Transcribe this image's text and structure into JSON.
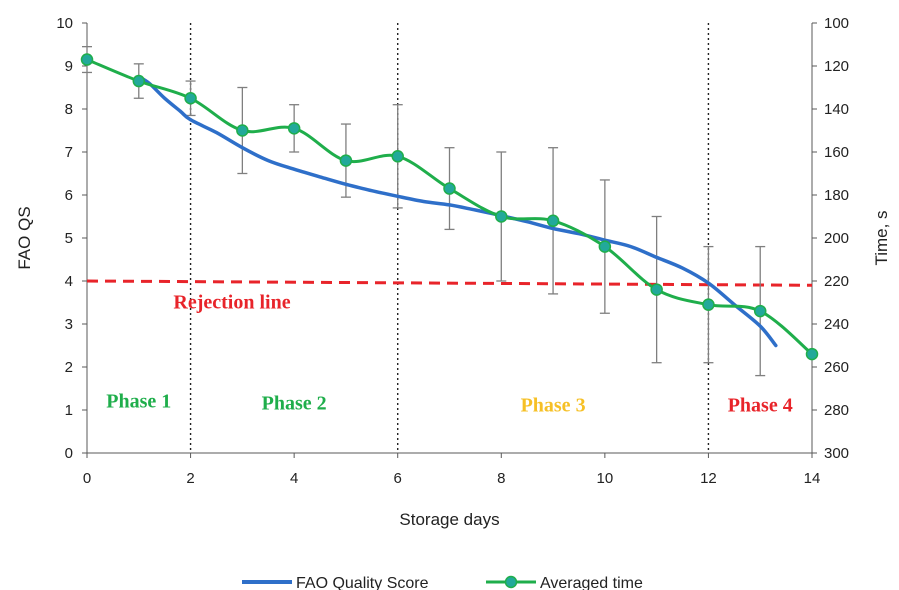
{
  "chart_data": {
    "type": "line",
    "xlabel": "Storage days",
    "ylabel_left": "FAO QS",
    "ylabel_right": "Time, s",
    "xlim": [
      0,
      14
    ],
    "ylim_left": [
      0,
      10
    ],
    "ylim_right": [
      100,
      300
    ],
    "right_axis_inverted": true,
    "x_ticks": [
      "0",
      "2",
      "4",
      "6",
      "8",
      "10",
      "12",
      "14"
    ],
    "y_left_ticks": [
      "0",
      "1",
      "2",
      "3",
      "4",
      "5",
      "6",
      "7",
      "8",
      "9",
      "10"
    ],
    "y_right_ticks": [
      "100",
      "120",
      "140",
      "160",
      "180",
      "200",
      "220",
      "240",
      "260",
      "280",
      "300"
    ],
    "grid": false,
    "legend_position": "bottom",
    "series": [
      {
        "name": "FAO Quality Score",
        "color": "#2e6fc9",
        "axis": "left",
        "x": [
          1.0,
          1.2,
          1.5,
          1.8,
          2.0,
          2.5,
          3.0,
          3.5,
          4.0,
          4.5,
          5.0,
          5.5,
          6.0,
          6.5,
          7.0,
          7.5,
          8.0,
          8.5,
          9.0,
          9.5,
          10.0,
          10.5,
          11.0,
          11.5,
          12.0,
          12.5,
          13.0,
          13.3
        ],
        "y": [
          8.75,
          8.6,
          8.25,
          7.95,
          7.75,
          7.45,
          7.1,
          6.8,
          6.6,
          6.42,
          6.25,
          6.1,
          5.97,
          5.85,
          5.77,
          5.65,
          5.52,
          5.38,
          5.22,
          5.1,
          4.95,
          4.8,
          4.55,
          4.3,
          3.95,
          3.45,
          2.95,
          2.5
        ]
      },
      {
        "name": "Averaged time",
        "color": "#1fae4b",
        "axis": "right",
        "x": [
          0,
          1,
          2,
          3,
          4,
          5,
          6,
          7,
          8,
          9,
          10,
          11,
          12,
          13,
          14
        ],
        "y": [
          117,
          127,
          135,
          150,
          149,
          164,
          162,
          177,
          190,
          192,
          204,
          224,
          231,
          234,
          254
        ],
        "error": [
          6,
          8,
          8,
          20,
          11,
          17,
          24,
          19,
          30,
          34,
          31,
          34,
          27,
          30,
          0
        ]
      }
    ],
    "reference_line": {
      "label": "Rejection line",
      "y_start": 4.0,
      "y_end": 3.9,
      "color": "#e8242a"
    },
    "phase_boundaries": [
      2,
      6,
      12
    ],
    "phases": [
      {
        "label": "Phase 1",
        "color": "#1fae4b",
        "x": 1.0,
        "y": 1.2
      },
      {
        "label": "Phase 2",
        "color": "#1fae4b",
        "x": 4.0,
        "y": 1.15
      },
      {
        "label": "Phase 3",
        "color": "#f6c026",
        "x": 9.0,
        "y": 1.1
      },
      {
        "label": "Phase 4",
        "color": "#e8242a",
        "x": 13.0,
        "y": 1.1
      }
    ]
  }
}
